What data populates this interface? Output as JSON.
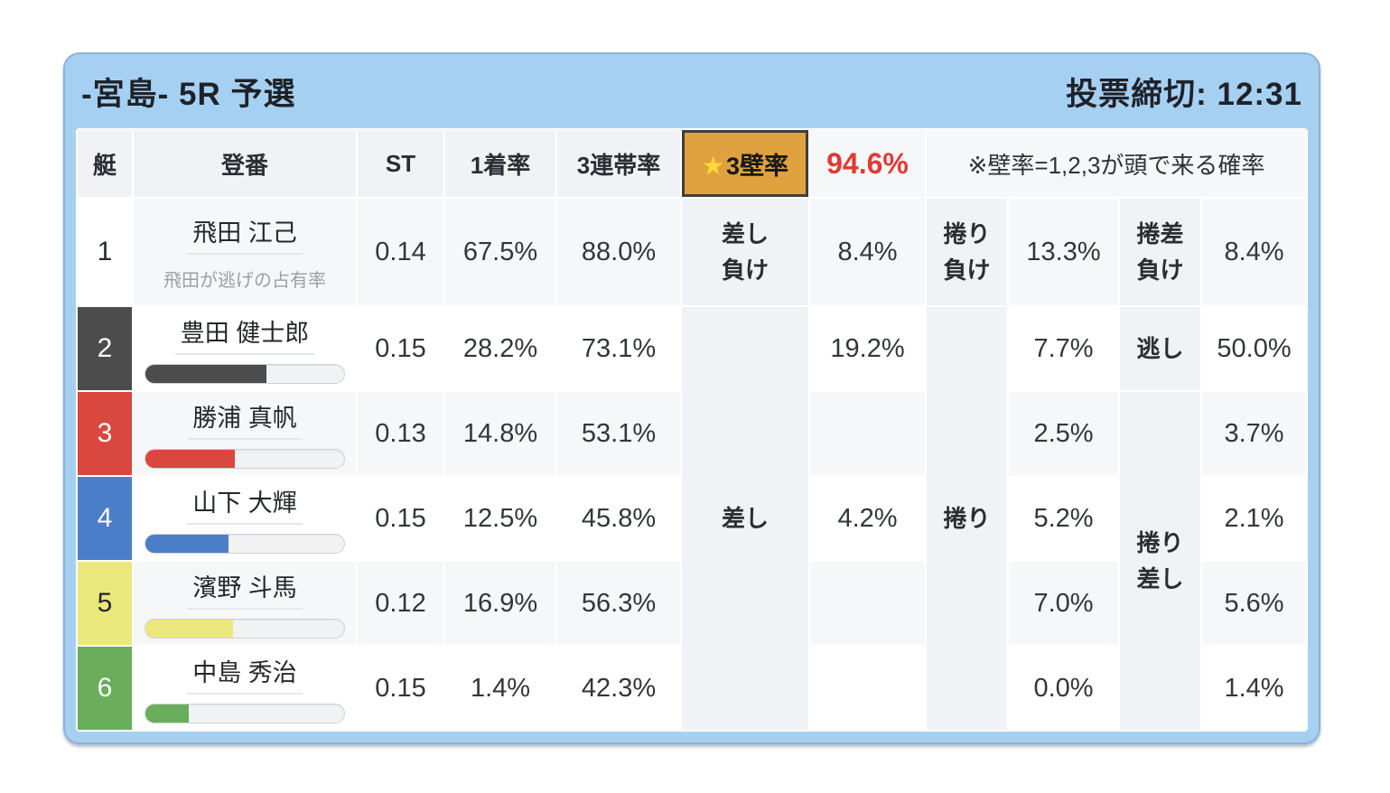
{
  "header": {
    "title": "-宮島- 5R 予選",
    "deadline": "投票締切: 12:31"
  },
  "accent_colors": {
    "frame_blue": "#a6d0f2",
    "wall_gold": "#dfa23e",
    "value_red": "#e03a34"
  },
  "table": {
    "columns": {
      "boat": "艇",
      "racer": "登番",
      "st": "ST",
      "win_rate": "1着率",
      "top3_rate": "3連帯率"
    },
    "wall": {
      "star": "★",
      "label": "3壁率",
      "value": "94.6%",
      "note": "※壁率=1,2,3が頭で来る確率"
    },
    "row1_labels": {
      "sashi_make": "差し\n負け",
      "makuri_make": "捲り\n負け",
      "makurizashi_make": "捲差\n負け"
    },
    "group_labels": {
      "sashi": "差し",
      "makuri": "捲り",
      "nigashi": "逃し",
      "makurizashi": "捲り\n差し"
    },
    "rows": [
      {
        "boat": "1",
        "color": "#ffffff",
        "name": "飛田 江己",
        "subnote": "飛田が逃げの占有率",
        "st": "0.14",
        "win_rate": "67.5%",
        "top3_rate": "88.0%",
        "v1": "8.4%",
        "v2": "13.3%",
        "v3": "8.4%"
      },
      {
        "boat": "2",
        "color": "#4c4c4c",
        "name": "豊田 健士郎",
        "bar_percent": 61,
        "st": "0.15",
        "win_rate": "28.2%",
        "top3_rate": "73.1%",
        "v1": "19.2%",
        "v2": "7.7%",
        "v3": "50.0%"
      },
      {
        "boat": "3",
        "color": "#d9473f",
        "name": "勝浦 真帆",
        "bar_percent": 45,
        "st": "0.13",
        "win_rate": "14.8%",
        "top3_rate": "53.1%",
        "v1": "",
        "v2": "2.5%",
        "v3": "3.7%"
      },
      {
        "boat": "4",
        "color": "#4b7ec8",
        "name": "山下 大輝",
        "bar_percent": 42,
        "st": "0.15",
        "win_rate": "12.5%",
        "top3_rate": "45.8%",
        "v1": "4.2%",
        "v2": "5.2%",
        "v3": "2.1%"
      },
      {
        "boat": "5",
        "color": "#ebe87b",
        "name": "濱野 斗馬",
        "bar_percent": 44,
        "st": "0.12",
        "win_rate": "16.9%",
        "top3_rate": "56.3%",
        "v1": "",
        "v2": "7.0%",
        "v3": "5.6%"
      },
      {
        "boat": "6",
        "color": "#6aad5b",
        "name": "中島 秀治",
        "bar_percent": 22,
        "st": "0.15",
        "win_rate": "1.4%",
        "top3_rate": "42.3%",
        "v1": "",
        "v2": "0.0%",
        "v3": "1.4%"
      }
    ]
  }
}
